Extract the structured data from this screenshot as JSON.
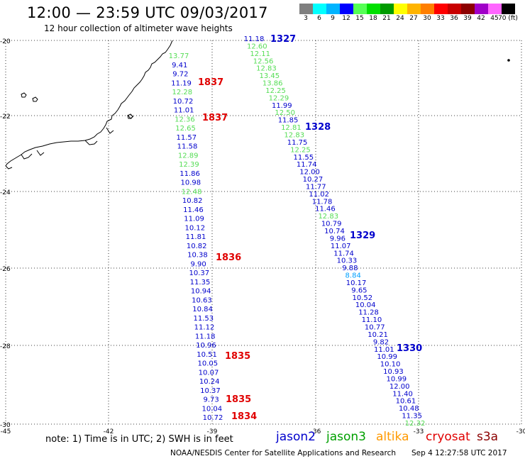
{
  "header": {
    "title": "12:00 — 23:59 UTC 09/03/2017",
    "subtitle": "12 hour collection of altimeter wave heights"
  },
  "colorbar": {
    "labels": [
      "3",
      "6",
      "9",
      "12",
      "15",
      "18",
      "21",
      "24",
      "27",
      "30",
      "33",
      "36",
      "39",
      "42",
      "45",
      "70 (ft)"
    ],
    "colors": [
      "#7f7f7f",
      "#00ffff",
      "#00b4ff",
      "#0000ff",
      "#55ff55",
      "#00e000",
      "#009a00",
      "#ffff00",
      "#ffb400",
      "#ff7f00",
      "#ff0000",
      "#c80000",
      "#8c0000",
      "#a000c8",
      "#ff66ff",
      "#000000"
    ]
  },
  "map": {
    "lon_ticks": [
      "-45",
      "-42",
      "-39",
      "-36",
      "-33",
      "-30"
    ],
    "lat_ticks": [
      "-20",
      "-22",
      "-24",
      "-26",
      "-28",
      "-30"
    ]
  },
  "tracks": [
    {
      "labels": [
        {
          "text": "1837",
          "color": "#e00000"
        },
        {
          "text": "1837",
          "color": "#e00000"
        },
        {
          "text": "1836",
          "color": "#e00000"
        },
        {
          "text": "1835",
          "color": "#e00000"
        },
        {
          "text": "1835",
          "color": "#e00000"
        },
        {
          "text": "1834",
          "color": "#e00000"
        }
      ],
      "values": [
        {
          "v": "13.77",
          "c": "#55dd55"
        },
        {
          "v": "9.41",
          "c": "#0000cc"
        },
        {
          "v": "9.72",
          "c": "#0000cc"
        },
        {
          "v": "11.19",
          "c": "#0000cc"
        },
        {
          "v": "12.28",
          "c": "#55dd55"
        },
        {
          "v": "10.72",
          "c": "#0000cc"
        },
        {
          "v": "11.01",
          "c": "#0000cc"
        },
        {
          "v": "12.36",
          "c": "#55dd55"
        },
        {
          "v": "12.65",
          "c": "#55dd55"
        },
        {
          "v": "11.57",
          "c": "#0000cc"
        },
        {
          "v": "11.58",
          "c": "#0000cc"
        },
        {
          "v": "12.89",
          "c": "#55dd55"
        },
        {
          "v": "12.39",
          "c": "#55dd55"
        },
        {
          "v": "11.86",
          "c": "#0000cc"
        },
        {
          "v": "10.98",
          "c": "#0000cc"
        },
        {
          "v": "12.48",
          "c": "#55dd55"
        },
        {
          "v": "10.82",
          "c": "#0000cc"
        },
        {
          "v": "11.46",
          "c": "#0000cc"
        },
        {
          "v": "11.09",
          "c": "#0000cc"
        },
        {
          "v": "10.12",
          "c": "#0000cc"
        },
        {
          "v": "11.81",
          "c": "#0000cc"
        },
        {
          "v": "10.82",
          "c": "#0000cc"
        },
        {
          "v": "10.38",
          "c": "#0000cc"
        },
        {
          "v": "9.90",
          "c": "#0000cc"
        },
        {
          "v": "10.37",
          "c": "#0000cc"
        },
        {
          "v": "11.35",
          "c": "#0000cc"
        },
        {
          "v": "10.94",
          "c": "#0000cc"
        },
        {
          "v": "10.63",
          "c": "#0000cc"
        },
        {
          "v": "10.84",
          "c": "#0000cc"
        },
        {
          "v": "11.53",
          "c": "#0000cc"
        },
        {
          "v": "11.12",
          "c": "#0000cc"
        },
        {
          "v": "11.18",
          "c": "#0000cc"
        },
        {
          "v": "10.96",
          "c": "#0000cc"
        },
        {
          "v": "10.51",
          "c": "#0000cc"
        },
        {
          "v": "10.05",
          "c": "#0000cc"
        },
        {
          "v": "10.07",
          "c": "#0000cc"
        },
        {
          "v": "10.24",
          "c": "#0000cc"
        },
        {
          "v": "10.37",
          "c": "#0000cc"
        },
        {
          "v": "9.73",
          "c": "#0000cc"
        },
        {
          "v": "10.04",
          "c": "#0000cc"
        },
        {
          "v": "10.72",
          "c": "#0000cc"
        }
      ]
    },
    {
      "labels": [
        {
          "text": "1327",
          "color": "#0000cc"
        },
        {
          "text": "1328",
          "color": "#0000cc"
        },
        {
          "text": "1329",
          "color": "#0000cc"
        },
        {
          "text": "1330",
          "color": "#0000cc"
        }
      ],
      "values": [
        {
          "v": "11.18",
          "c": "#0000cc"
        },
        {
          "v": "12.60",
          "c": "#55dd55"
        },
        {
          "v": "12.11",
          "c": "#55dd55"
        },
        {
          "v": "12.56",
          "c": "#55dd55"
        },
        {
          "v": "12.83",
          "c": "#55dd55"
        },
        {
          "v": "13.45",
          "c": "#55dd55"
        },
        {
          "v": "13.86",
          "c": "#55dd55"
        },
        {
          "v": "12.25",
          "c": "#55dd55"
        },
        {
          "v": "12.29",
          "c": "#55dd55"
        },
        {
          "v": "11.99",
          "c": "#0000cc"
        },
        {
          "v": "12.50",
          "c": "#55dd55"
        },
        {
          "v": "11.85",
          "c": "#0000cc"
        },
        {
          "v": "12.81",
          "c": "#55dd55"
        },
        {
          "v": "12.83",
          "c": "#55dd55"
        },
        {
          "v": "11.75",
          "c": "#0000cc"
        },
        {
          "v": "12.25",
          "c": "#55dd55"
        },
        {
          "v": "11.55",
          "c": "#0000cc"
        },
        {
          "v": "11.74",
          "c": "#0000cc"
        },
        {
          "v": "12.00",
          "c": "#0000cc"
        },
        {
          "v": "10.27",
          "c": "#0000cc"
        },
        {
          "v": "11.77",
          "c": "#0000cc"
        },
        {
          "v": "11.02",
          "c": "#0000cc"
        },
        {
          "v": "11.78",
          "c": "#0000cc"
        },
        {
          "v": "11.46",
          "c": "#0000cc"
        },
        {
          "v": "12.83",
          "c": "#55dd55"
        },
        {
          "v": "10.79",
          "c": "#0000cc"
        },
        {
          "v": "10.74",
          "c": "#0000cc"
        },
        {
          "v": "9.96",
          "c": "#0000cc"
        },
        {
          "v": "11.07",
          "c": "#0000cc"
        },
        {
          "v": "11.74",
          "c": "#0000cc"
        },
        {
          "v": "10.33",
          "c": "#0000cc"
        },
        {
          "v": "9.88",
          "c": "#0000cc"
        },
        {
          "v": "8.84",
          "c": "#00a0ff"
        },
        {
          "v": "10.17",
          "c": "#0000cc"
        },
        {
          "v": "9.65",
          "c": "#0000cc"
        },
        {
          "v": "10.52",
          "c": "#0000cc"
        },
        {
          "v": "10.04",
          "c": "#0000cc"
        },
        {
          "v": "11.28",
          "c": "#0000cc"
        },
        {
          "v": "11.10",
          "c": "#0000cc"
        },
        {
          "v": "10.77",
          "c": "#0000cc"
        },
        {
          "v": "10.21",
          "c": "#0000cc"
        },
        {
          "v": "9.82",
          "c": "#0000cc"
        },
        {
          "v": "11.01",
          "c": "#0000cc"
        },
        {
          "v": "10.99",
          "c": "#0000cc"
        },
        {
          "v": "10.10",
          "c": "#0000cc"
        },
        {
          "v": "10.93",
          "c": "#0000cc"
        },
        {
          "v": "10.99",
          "c": "#0000cc"
        },
        {
          "v": "12.00",
          "c": "#0000cc"
        },
        {
          "v": "11.40",
          "c": "#0000cc"
        },
        {
          "v": "10.61",
          "c": "#0000cc"
        },
        {
          "v": "10.48",
          "c": "#0000cc"
        },
        {
          "v": "11.35",
          "c": "#0000cc"
        },
        {
          "v": "12.32",
          "c": "#55dd55"
        }
      ]
    }
  ],
  "footer": {
    "note": "note: 1) Time is in UTC; 2) SWH is in feet",
    "satellites": [
      {
        "name": "jason2",
        "color": "#0000cc"
      },
      {
        "name": "jason3",
        "color": "#00a000"
      },
      {
        "name": "altika",
        "color": "#ff9900"
      },
      {
        "name": "cryosat",
        "color": "#e00000"
      },
      {
        "name": "s3a",
        "color": "#8b0000"
      }
    ],
    "credit": "NOAA/NESDIS Center for Satellite Applications and Research",
    "timestamp": "Sep  4 12:27:58 UTC 2017"
  }
}
